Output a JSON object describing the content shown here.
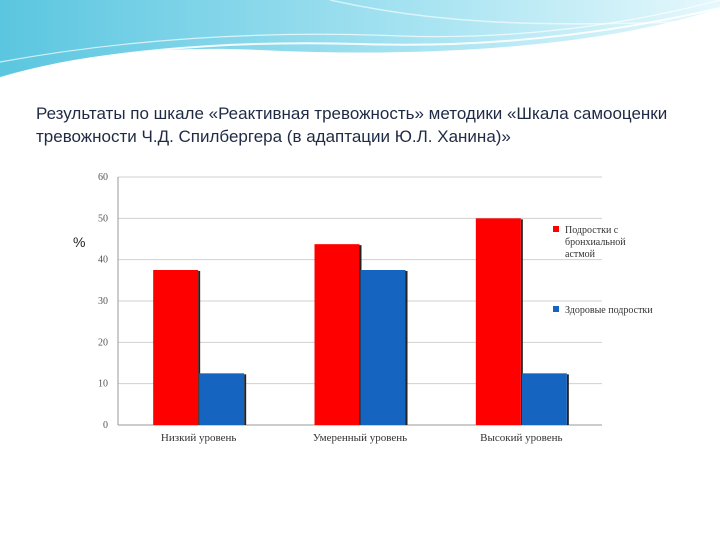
{
  "slide": {
    "title": "Результаты по шкале «Реактивная тревожность» методики «Шкала самооценки тревожности Ч.Д. Спилбергера (в адаптации Ю.Л. Ханина)»"
  },
  "chart_data": {
    "type": "bar",
    "title": "",
    "xlabel": "",
    "ylabel": "%",
    "ylim": [
      0,
      60
    ],
    "yticks": [
      0,
      10,
      20,
      30,
      40,
      50,
      60
    ],
    "grid": true,
    "legend_position": "right",
    "categories": [
      "Низкий уровень",
      "Умеренный уровень",
      "Высокий уровень"
    ],
    "series": [
      {
        "name": "Подростки с бронхиальной астмой",
        "legend_lines": [
          "Подростки с",
          "бронхиальной",
          "астмой"
        ],
        "color": "#ff0000",
        "values": [
          37.5,
          43.75,
          50
        ]
      },
      {
        "name": "Здоровые подростки",
        "legend_lines": [
          "Здоровые подростки"
        ],
        "color": "#1565c0",
        "values": [
          12.5,
          37.5,
          12.5
        ]
      }
    ]
  }
}
